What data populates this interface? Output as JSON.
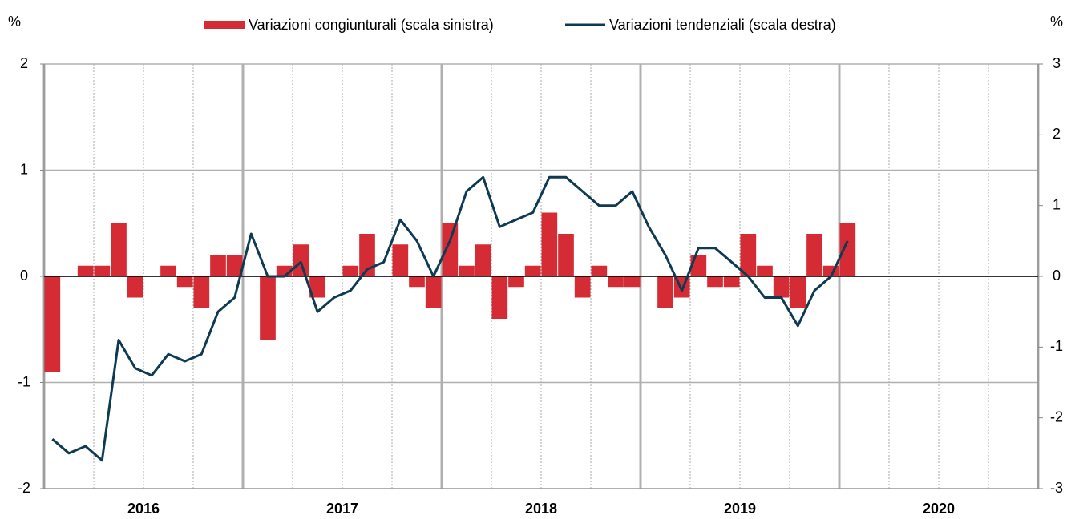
{
  "chart_data": {
    "type": "bar-line",
    "y_unit": "%",
    "y2_unit": "%",
    "years": [
      "2016",
      "2017",
      "2018",
      "2019",
      "2020"
    ],
    "ylim": [
      -2,
      2
    ],
    "yticks": [
      -2,
      -1,
      0,
      1,
      2
    ],
    "y2lim": [
      -3,
      3
    ],
    "y2ticks": [
      -3,
      -2,
      -1,
      0,
      1,
      2,
      3
    ],
    "grid": true,
    "legend": "top",
    "series": [
      {
        "name": "Variazioni congiunturali (scala sinistra)",
        "type": "bar",
        "color": "#d52b35",
        "values": [
          -0.9,
          0,
          0.1,
          0.1,
          0.5,
          -0.2,
          0,
          0.1,
          -0.1,
          -0.3,
          0.2,
          0.2,
          0,
          -0.6,
          0.1,
          0.3,
          -0.2,
          0,
          0.1,
          0.4,
          0,
          0.3,
          -0.1,
          -0.3,
          0.5,
          0.1,
          0.3,
          -0.4,
          -0.1,
          0.1,
          0.6,
          0.4,
          -0.2,
          0.1,
          -0.1,
          -0.1,
          0,
          -0.3,
          -0.2,
          0.2,
          -0.1,
          -0.1,
          0.4,
          0.1,
          -0.2,
          -0.3,
          0.4,
          0.1,
          0.5
        ]
      },
      {
        "name": "Variazioni tendenziali (scala destra)",
        "type": "line",
        "axis": "y2",
        "color": "#0e3a52",
        "values": [
          -2.3,
          -2.5,
          -2.4,
          -2.6,
          -0.9,
          -1.3,
          -1.4,
          -1.1,
          -1.2,
          -1.1,
          -0.5,
          -0.3,
          0.6,
          0,
          0,
          0.2,
          -0.5,
          -0.3,
          -0.2,
          0.1,
          0.2,
          0.8,
          0.5,
          0,
          0.5,
          1.2,
          1.4,
          0.7,
          0.8,
          0.9,
          1.4,
          1.4,
          1.2,
          1.0,
          1.0,
          1.2,
          0.7,
          0.3,
          -0.2,
          0.4,
          0.4,
          0.2,
          0,
          -0.3,
          -0.3,
          -0.7,
          -0.2,
          0,
          0.5
        ]
      }
    ]
  }
}
